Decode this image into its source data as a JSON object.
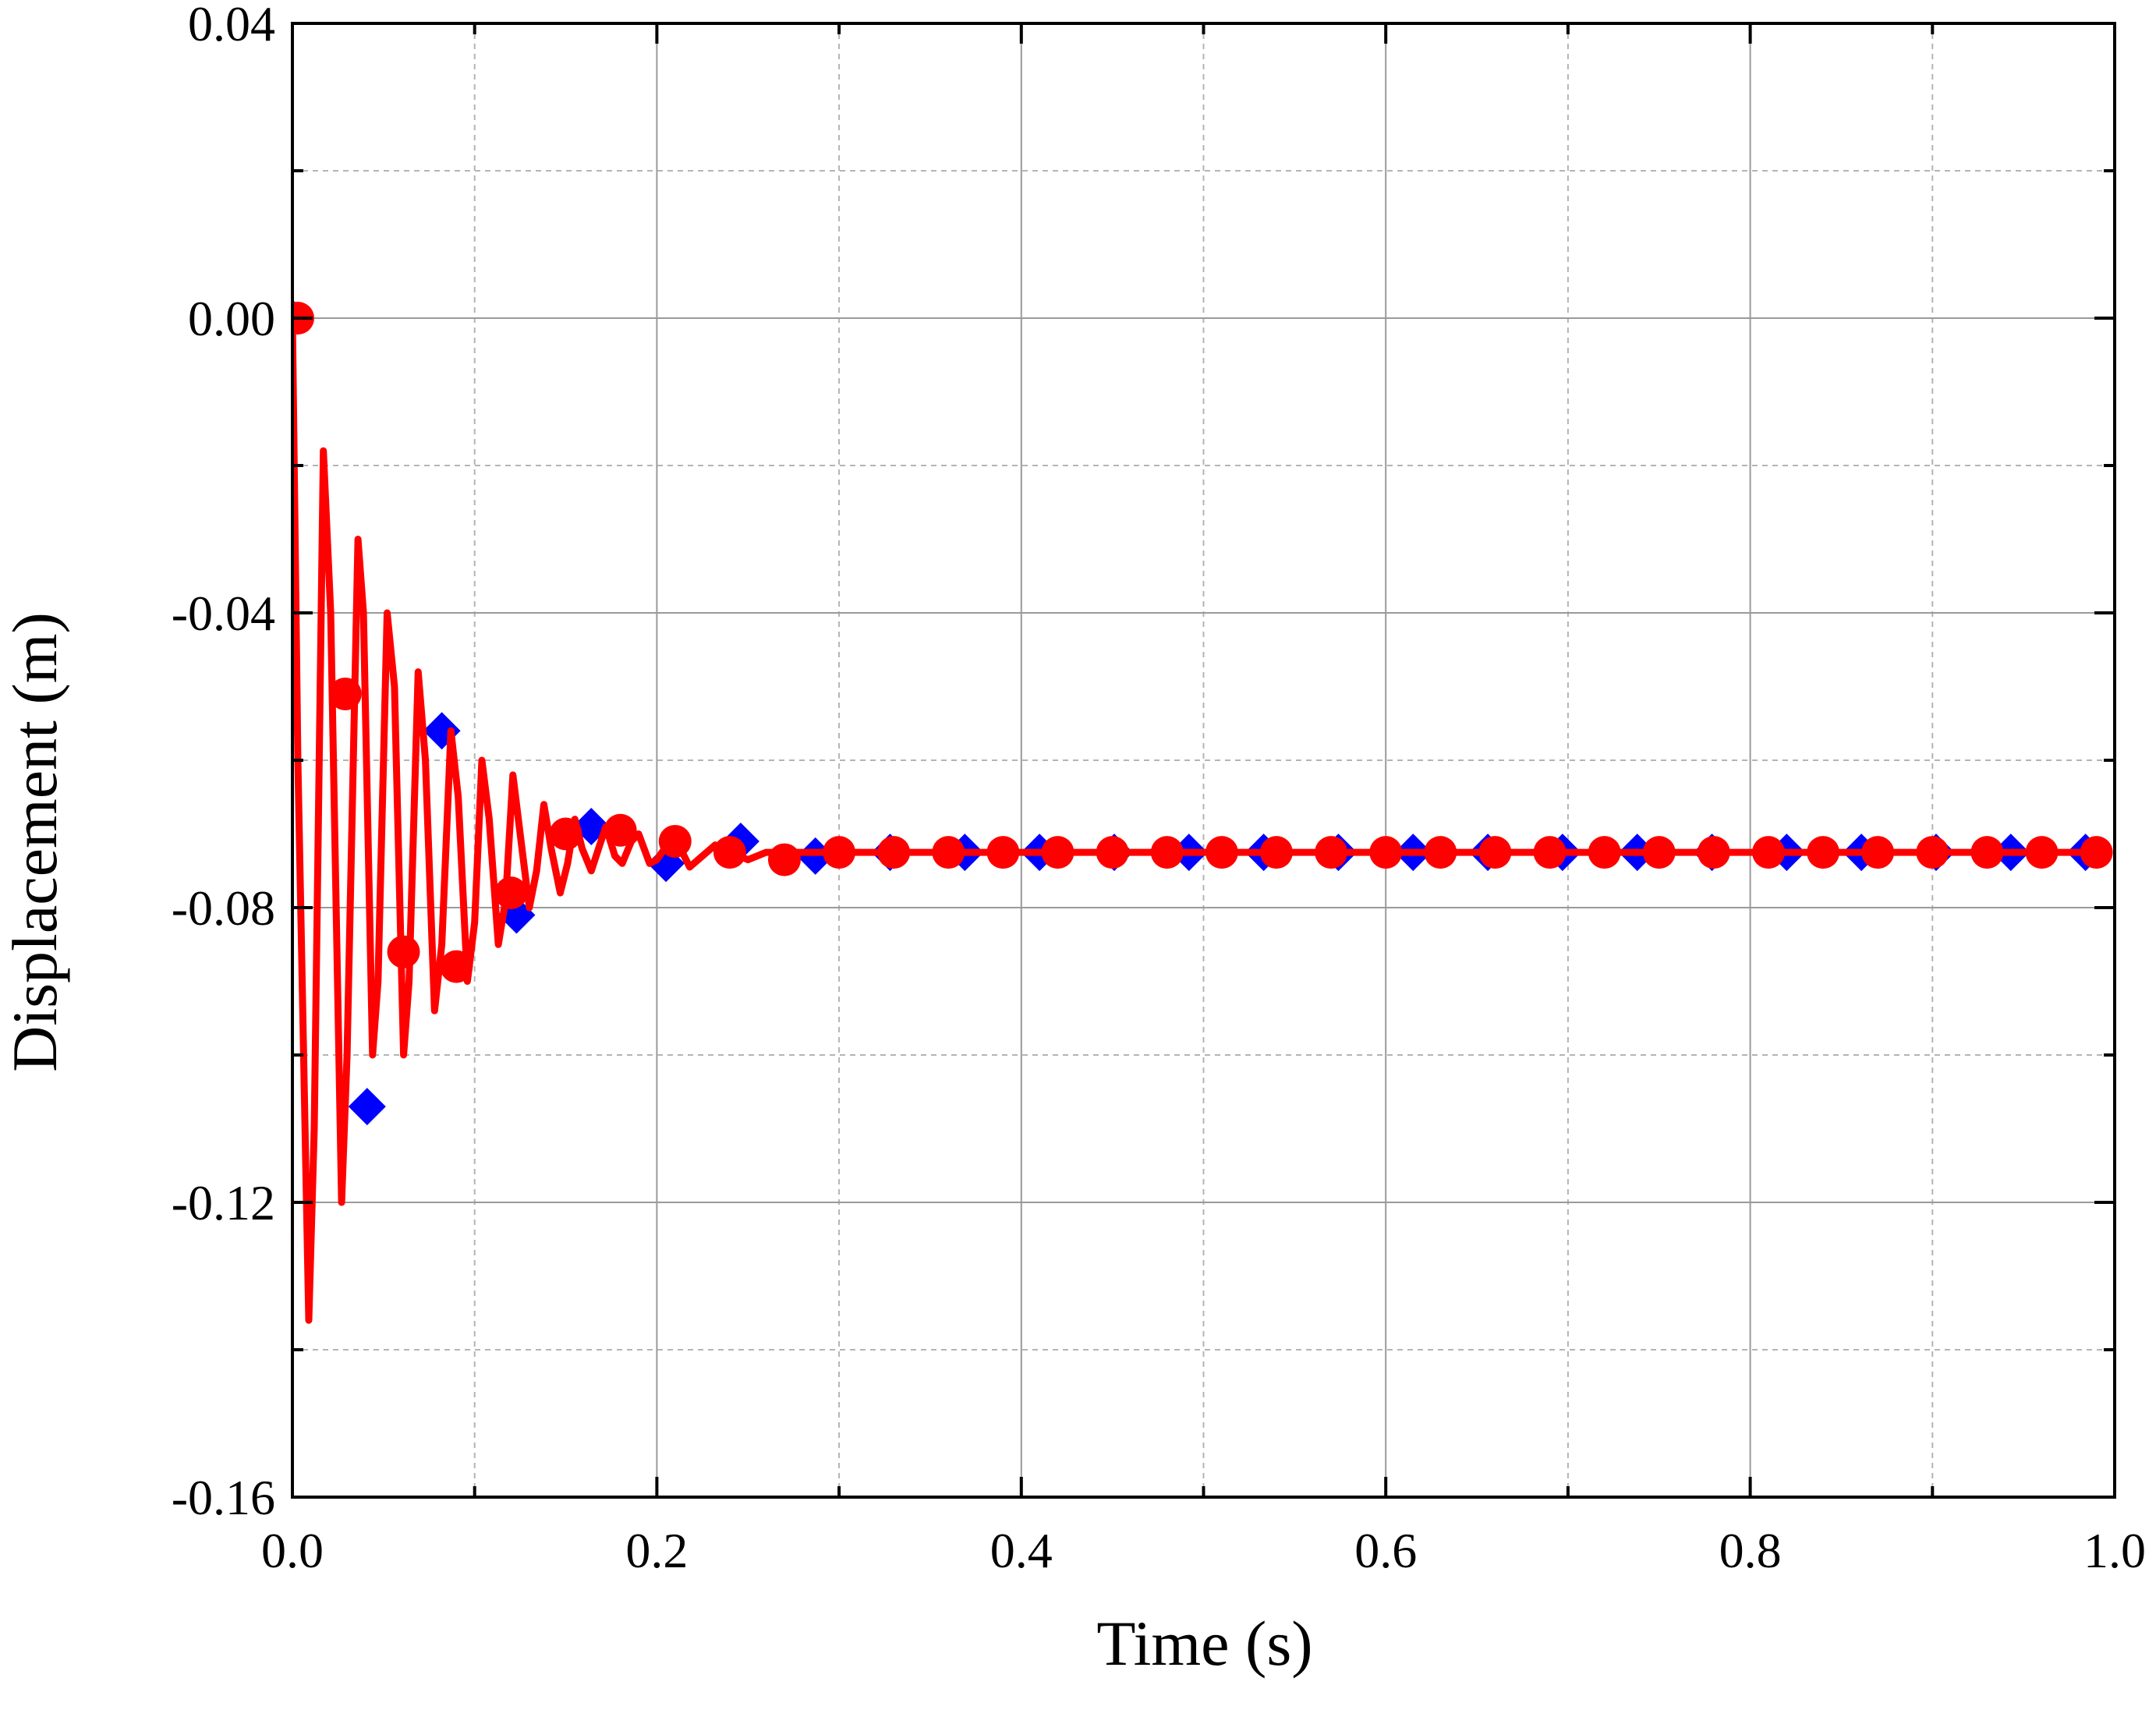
{
  "chart_data": {
    "type": "line",
    "xlabel": "Time (s)",
    "ylabel": "Displacement (m)",
    "xlim": [
      0,
      1.0
    ],
    "ylim": [
      -0.16,
      0.04
    ],
    "x_ticks": [
      "0.0",
      "0.2",
      "0.4",
      "0.6",
      "0.8",
      "1.0"
    ],
    "y_ticks": [
      "0.04",
      "0.00",
      "-0.04",
      "-0.08",
      "-0.12",
      "-0.16"
    ],
    "grid": true,
    "legend": "none",
    "series": [
      {
        "color": "#0000ff",
        "marker": "diamond",
        "marker_points": [
          [
            0.0,
            0.0
          ],
          [
            0.041,
            -0.107
          ],
          [
            0.082,
            -0.056
          ],
          [
            0.123,
            -0.081
          ],
          [
            0.164,
            -0.069
          ],
          [
            0.205,
            -0.074
          ],
          [
            0.246,
            -0.071
          ],
          [
            0.287,
            -0.073
          ],
          [
            0.328,
            -0.0725
          ],
          [
            0.369,
            -0.0725
          ],
          [
            0.41,
            -0.0725
          ],
          [
            0.451,
            -0.0725
          ],
          [
            0.492,
            -0.0725
          ],
          [
            0.533,
            -0.0725
          ],
          [
            0.574,
            -0.0725
          ],
          [
            0.615,
            -0.0725
          ],
          [
            0.656,
            -0.0725
          ],
          [
            0.697,
            -0.0725
          ],
          [
            0.738,
            -0.0725
          ],
          [
            0.779,
            -0.0725
          ],
          [
            0.82,
            -0.0725
          ],
          [
            0.861,
            -0.0725
          ],
          [
            0.902,
            -0.0725
          ],
          [
            0.943,
            -0.0725
          ],
          [
            0.984,
            -0.0725
          ]
        ]
      },
      {
        "color": "#ff0000",
        "marker": "circle",
        "line": [
          [
            0.0,
            0.0
          ],
          [
            0.003,
            -0.06
          ],
          [
            0.009,
            -0.136
          ],
          [
            0.012,
            -0.11
          ],
          [
            0.017,
            -0.018
          ],
          [
            0.021,
            -0.04
          ],
          [
            0.027,
            -0.12
          ],
          [
            0.03,
            -0.1
          ],
          [
            0.036,
            -0.03
          ],
          [
            0.039,
            -0.04
          ],
          [
            0.044,
            -0.1
          ],
          [
            0.047,
            -0.09
          ],
          [
            0.052,
            -0.04
          ],
          [
            0.056,
            -0.05
          ],
          [
            0.061,
            -0.1
          ],
          [
            0.064,
            -0.09
          ],
          [
            0.069,
            -0.048
          ],
          [
            0.073,
            -0.06
          ],
          [
            0.078,
            -0.094
          ],
          [
            0.082,
            -0.085
          ],
          [
            0.087,
            -0.056
          ],
          [
            0.091,
            -0.065
          ],
          [
            0.096,
            -0.09
          ],
          [
            0.1,
            -0.082
          ],
          [
            0.104,
            -0.06
          ],
          [
            0.108,
            -0.068
          ],
          [
            0.113,
            -0.085
          ],
          [
            0.117,
            -0.079
          ],
          [
            0.121,
            -0.062
          ],
          [
            0.125,
            -0.07
          ],
          [
            0.13,
            -0.08
          ],
          [
            0.134,
            -0.075
          ],
          [
            0.138,
            -0.066
          ],
          [
            0.142,
            -0.072
          ],
          [
            0.147,
            -0.078
          ],
          [
            0.151,
            -0.074
          ],
          [
            0.155,
            -0.068
          ],
          [
            0.159,
            -0.072
          ],
          [
            0.164,
            -0.075
          ],
          [
            0.168,
            -0.072
          ],
          [
            0.172,
            -0.069
          ],
          [
            0.177,
            -0.073
          ],
          [
            0.181,
            -0.074
          ],
          [
            0.186,
            -0.071
          ],
          [
            0.19,
            -0.07
          ],
          [
            0.196,
            -0.074
          ],
          [
            0.2,
            -0.0735
          ],
          [
            0.207,
            -0.071
          ],
          [
            0.212,
            -0.0715
          ],
          [
            0.218,
            -0.0745
          ],
          [
            0.225,
            -0.073
          ],
          [
            0.232,
            -0.0715
          ],
          [
            0.24,
            -0.0725
          ],
          [
            0.25,
            -0.0735
          ],
          [
            0.26,
            -0.0725
          ],
          [
            0.28,
            -0.0725
          ],
          [
            0.35,
            -0.0725
          ],
          [
            0.5,
            -0.0725
          ],
          [
            0.7,
            -0.0725
          ],
          [
            0.9,
            -0.0725
          ],
          [
            0.99,
            -0.0725
          ]
        ],
        "marker_points": [
          [
            0.003,
            0.0
          ],
          [
            0.029,
            -0.051
          ],
          [
            0.061,
            -0.086
          ],
          [
            0.09,
            -0.088
          ],
          [
            0.12,
            -0.078
          ],
          [
            0.15,
            -0.07
          ],
          [
            0.18,
            -0.0695
          ],
          [
            0.21,
            -0.071
          ],
          [
            0.24,
            -0.0725
          ],
          [
            0.27,
            -0.0735
          ],
          [
            0.3,
            -0.0725
          ],
          [
            0.33,
            -0.0725
          ],
          [
            0.36,
            -0.0725
          ],
          [
            0.39,
            -0.0725
          ],
          [
            0.42,
            -0.0725
          ],
          [
            0.45,
            -0.0725
          ],
          [
            0.48,
            -0.0725
          ],
          [
            0.51,
            -0.0725
          ],
          [
            0.54,
            -0.0725
          ],
          [
            0.57,
            -0.0725
          ],
          [
            0.6,
            -0.0725
          ],
          [
            0.63,
            -0.0725
          ],
          [
            0.66,
            -0.0725
          ],
          [
            0.69,
            -0.0725
          ],
          [
            0.72,
            -0.0725
          ],
          [
            0.75,
            -0.0725
          ],
          [
            0.78,
            -0.0725
          ],
          [
            0.81,
            -0.0725
          ],
          [
            0.84,
            -0.0725
          ],
          [
            0.87,
            -0.0725
          ],
          [
            0.9,
            -0.0725
          ],
          [
            0.93,
            -0.0725
          ],
          [
            0.96,
            -0.0725
          ],
          [
            0.99,
            -0.0725
          ]
        ]
      }
    ]
  }
}
